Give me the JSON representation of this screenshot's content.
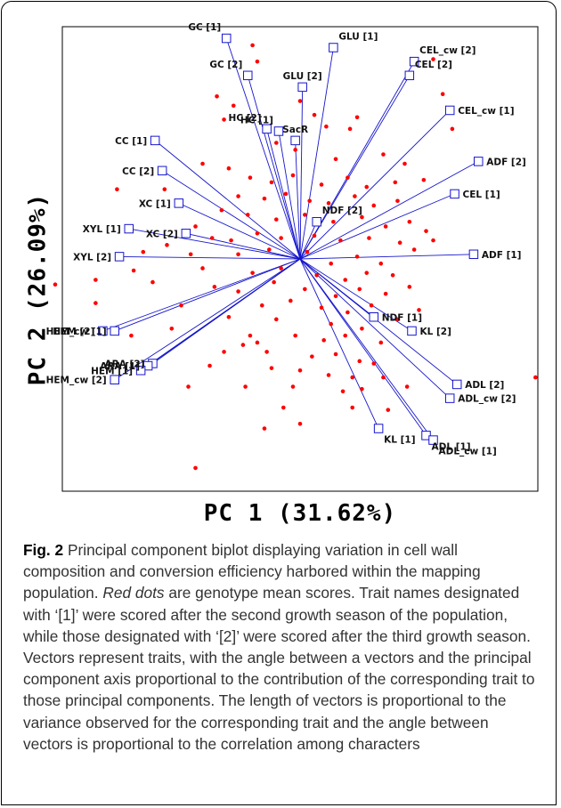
{
  "chart_data": {
    "type": "scatter",
    "subtype": "biplot",
    "xlabel": "PC 1 (31.62%)",
    "ylabel": "PC 2 (26.09%)",
    "xlim": [
      -10,
      10
    ],
    "ylim": [
      -10,
      10
    ],
    "grid": false,
    "point_color": "#ff0000",
    "vector_color": "#1515cc",
    "origin": [
      0.0,
      0.0
    ],
    "vectors": [
      {
        "label": "GC [1]",
        "x": -3.1,
        "y": 9.5
      },
      {
        "label": "GC [2]",
        "x": -2.2,
        "y": 7.9
      },
      {
        "label": "GLU [1]",
        "x": 1.4,
        "y": 9.1
      },
      {
        "label": "GLU [2]",
        "x": 0.1,
        "y": 7.4
      },
      {
        "label": "CEL_cw [2]",
        "x": 4.8,
        "y": 8.5
      },
      {
        "label": "CEL [2]",
        "x": 4.6,
        "y": 7.9
      },
      {
        "label": "CEL_cw [1]",
        "x": 6.3,
        "y": 6.4
      },
      {
        "label": "HC [2]",
        "x": -1.4,
        "y": 5.6
      },
      {
        "label": "HC [1]",
        "x": -0.9,
        "y": 5.5
      },
      {
        "label": "SacR",
        "x": -0.2,
        "y": 5.1
      },
      {
        "label": "CC [1]",
        "x": -6.1,
        "y": 5.1
      },
      {
        "label": "ADF [2]",
        "x": 7.5,
        "y": 4.2
      },
      {
        "label": "CC [2]",
        "x": -5.8,
        "y": 3.8
      },
      {
        "label": "CEL [1]",
        "x": 6.5,
        "y": 2.8
      },
      {
        "label": "XC [1]",
        "x": -5.1,
        "y": 2.4
      },
      {
        "label": "NDF [2]",
        "x": 0.7,
        "y": 1.6
      },
      {
        "label": "XYL [1]",
        "x": -7.2,
        "y": 1.3
      },
      {
        "label": "XC [2]",
        "x": -4.8,
        "y": 1.1
      },
      {
        "label": "ADF [1]",
        "x": 7.3,
        "y": 0.2
      },
      {
        "label": "XYL [2]",
        "x": -7.6,
        "y": 0.1
      },
      {
        "label": "NDF [1]",
        "x": 3.1,
        "y": -2.5
      },
      {
        "label": "KL [2]",
        "x": 4.7,
        "y": -3.1
      },
      {
        "label": "HEM [2]",
        "x": -8.3,
        "y": -3.1
      },
      {
        "label": "HEM_cw [1]",
        "x": -7.8,
        "y": -3.1
      },
      {
        "label": "ARA [2]",
        "x": -6.2,
        "y": -4.5
      },
      {
        "label": "ARA [1]",
        "x": -6.4,
        "y": -4.6
      },
      {
        "label": "HEM [1]",
        "x": -6.7,
        "y": -4.8
      },
      {
        "label": "HEM_cw [2]",
        "x": -7.8,
        "y": -5.2
      },
      {
        "label": "ADL [2]",
        "x": 6.6,
        "y": -5.4
      },
      {
        "label": "ADL_cw [2]",
        "x": 6.3,
        "y": -6.0
      },
      {
        "label": "KL [1]",
        "x": 3.3,
        "y": -7.3
      },
      {
        "label": "ADL [1]",
        "x": 5.3,
        "y": -7.6
      },
      {
        "label": "ADL_cw [1]",
        "x": 5.6,
        "y": -7.8
      }
    ],
    "points": [
      {
        "x": -2.0,
        "y": 9.2
      },
      {
        "x": -1.8,
        "y": 8.5
      },
      {
        "x": -3.5,
        "y": 7.0
      },
      {
        "x": -2.8,
        "y": 6.6
      },
      {
        "x": -3.2,
        "y": 6.0
      },
      {
        "x": 0.0,
        "y": 6.8
      },
      {
        "x": 0.6,
        "y": 6.2
      },
      {
        "x": 1.1,
        "y": 5.7
      },
      {
        "x": 2.4,
        "y": 6.1
      },
      {
        "x": 5.6,
        "y": 8.6
      },
      {
        "x": 6.0,
        "y": 7.1
      },
      {
        "x": 6.4,
        "y": 5.6
      },
      {
        "x": 2.1,
        "y": 5.6
      },
      {
        "x": -1.0,
        "y": 5.0
      },
      {
        "x": -0.2,
        "y": 4.7
      },
      {
        "x": 1.5,
        "y": 4.3
      },
      {
        "x": 3.5,
        "y": 4.5
      },
      {
        "x": 4.4,
        "y": 4.1
      },
      {
        "x": -3.0,
        "y": 3.9
      },
      {
        "x": -4.1,
        "y": 4.1
      },
      {
        "x": -2.1,
        "y": 3.5
      },
      {
        "x": -1.2,
        "y": 3.3
      },
      {
        "x": -0.3,
        "y": 3.6
      },
      {
        "x": 0.9,
        "y": 3.2
      },
      {
        "x": 2.0,
        "y": 3.5
      },
      {
        "x": 2.8,
        "y": 3.1
      },
      {
        "x": 4.0,
        "y": 3.3
      },
      {
        "x": 5.2,
        "y": 3.4
      },
      {
        "x": -7.7,
        "y": 3.0
      },
      {
        "x": -5.7,
        "y": 3.0
      },
      {
        "x": -2.6,
        "y": 2.7
      },
      {
        "x": -1.5,
        "y": 2.6
      },
      {
        "x": -0.6,
        "y": 2.8
      },
      {
        "x": 0.4,
        "y": 2.5
      },
      {
        "x": 1.2,
        "y": 2.4
      },
      {
        "x": 2.3,
        "y": 2.7
      },
      {
        "x": 3.1,
        "y": 2.3
      },
      {
        "x": 4.1,
        "y": 2.5
      },
      {
        "x": -3.3,
        "y": 2.1
      },
      {
        "x": -2.2,
        "y": 1.9
      },
      {
        "x": -1.0,
        "y": 1.7
      },
      {
        "x": 0.2,
        "y": 1.9
      },
      {
        "x": 1.4,
        "y": 1.6
      },
      {
        "x": 2.6,
        "y": 1.8
      },
      {
        "x": 3.6,
        "y": 1.4
      },
      {
        "x": 4.6,
        "y": 1.6
      },
      {
        "x": 5.3,
        "y": 1.2
      },
      {
        "x": -4.4,
        "y": 1.4
      },
      {
        "x": -3.7,
        "y": 0.9
      },
      {
        "x": -5.6,
        "y": 0.6
      },
      {
        "x": -2.9,
        "y": 0.8
      },
      {
        "x": -1.8,
        "y": 1.1
      },
      {
        "x": -0.8,
        "y": 0.9
      },
      {
        "x": 0.6,
        "y": 1.0
      },
      {
        "x": 1.7,
        "y": 0.8
      },
      {
        "x": 2.9,
        "y": 0.9
      },
      {
        "x": 4.2,
        "y": 0.7
      },
      {
        "x": 4.8,
        "y": 0.4
      },
      {
        "x": 5.6,
        "y": 0.8
      },
      {
        "x": -6.6,
        "y": 0.3
      },
      {
        "x": -4.6,
        "y": 0.2
      },
      {
        "x": -2.6,
        "y": 0.2
      },
      {
        "x": -1.3,
        "y": 0.4
      },
      {
        "x": 0.3,
        "y": 0.3
      },
      {
        "x": 1.3,
        "y": -0.2
      },
      {
        "x": 2.4,
        "y": 0.1
      },
      {
        "x": 3.4,
        "y": -0.2
      },
      {
        "x": -7.0,
        "y": -0.5
      },
      {
        "x": -4.1,
        "y": -0.4
      },
      {
        "x": -2.0,
        "y": -0.6
      },
      {
        "x": -0.8,
        "y": -0.4
      },
      {
        "x": 0.7,
        "y": -0.7
      },
      {
        "x": 1.9,
        "y": -0.9
      },
      {
        "x": 2.8,
        "y": -0.6
      },
      {
        "x": 3.9,
        "y": -0.7
      },
      {
        "x": -10.3,
        "y": -1.1
      },
      {
        "x": -8.6,
        "y": -0.9
      },
      {
        "x": -6.2,
        "y": -1.0
      },
      {
        "x": -3.6,
        "y": -1.2
      },
      {
        "x": -2.6,
        "y": -1.4
      },
      {
        "x": -1.1,
        "y": -1.0
      },
      {
        "x": 0.2,
        "y": -1.3
      },
      {
        "x": 1.5,
        "y": -1.6
      },
      {
        "x": 2.5,
        "y": -1.3
      },
      {
        "x": 3.6,
        "y": -1.5
      },
      {
        "x": 4.6,
        "y": -1.2
      },
      {
        "x": -8.6,
        "y": -1.9
      },
      {
        "x": -5.0,
        "y": -2.0
      },
      {
        "x": -1.6,
        "y": -2.0
      },
      {
        "x": -0.4,
        "y": -1.8
      },
      {
        "x": 0.9,
        "y": -2.1
      },
      {
        "x": 2.0,
        "y": -2.3
      },
      {
        "x": 3.0,
        "y": -2.0
      },
      {
        "x": 4.1,
        "y": -2.6
      },
      {
        "x": 5.0,
        "y": -2.2
      },
      {
        "x": -3.0,
        "y": -2.5
      },
      {
        "x": -1.0,
        "y": -2.6
      },
      {
        "x": 1.3,
        "y": -2.8
      },
      {
        "x": 2.6,
        "y": -3.0
      },
      {
        "x": -5.4,
        "y": -3.0
      },
      {
        "x": -2.1,
        "y": -3.3
      },
      {
        "x": -0.2,
        "y": -3.3
      },
      {
        "x": 1.0,
        "y": -3.5
      },
      {
        "x": 1.9,
        "y": -3.3
      },
      {
        "x": 3.4,
        "y": -3.6
      },
      {
        "x": -7.1,
        "y": -3.3
      },
      {
        "x": -1.8,
        "y": -3.6
      },
      {
        "x": -2.4,
        "y": -3.7
      },
      {
        "x": -1.4,
        "y": -4.0
      },
      {
        "x": -3.2,
        "y": -4.0
      },
      {
        "x": 0.5,
        "y": -4.2
      },
      {
        "x": 1.5,
        "y": -4.1
      },
      {
        "x": 2.5,
        "y": -4.4
      },
      {
        "x": 3.1,
        "y": -4.5
      },
      {
        "x": -3.8,
        "y": -4.6
      },
      {
        "x": -1.2,
        "y": -4.7
      },
      {
        "x": 0.0,
        "y": -4.8
      },
      {
        "x": 1.2,
        "y": -5.0
      },
      {
        "x": 2.2,
        "y": -5.1
      },
      {
        "x": 3.5,
        "y": -5.1
      },
      {
        "x": -4.7,
        "y": -5.5
      },
      {
        "x": -2.3,
        "y": -5.5
      },
      {
        "x": -0.3,
        "y": -5.5
      },
      {
        "x": 1.8,
        "y": -5.7
      },
      {
        "x": 2.6,
        "y": -5.6
      },
      {
        "x": 4.5,
        "y": -5.5
      },
      {
        "x": 9.9,
        "y": -5.1
      },
      {
        "x": -0.7,
        "y": -6.4
      },
      {
        "x": 2.2,
        "y": -6.4
      },
      {
        "x": 3.7,
        "y": -6.5
      },
      {
        "x": -1.5,
        "y": -7.3
      },
      {
        "x": 0.0,
        "y": -7.1
      },
      {
        "x": -4.4,
        "y": -9.0
      }
    ]
  },
  "caption": {
    "fig_label": "Fig. 2",
    "part1": " Principal component biplot displaying variation in cell wall composition and conversion efficiency harbored within the mapping population. ",
    "italic": "Red dots",
    "part2": " are genotype mean scores. Trait names designated with ‘[1]’ were scored after the second growth season of the population, while those designated with ‘[2]’ were scored after the third growth season. Vectors represent traits, with the angle between a vectors and the principal component axis proportional to the contribution of the corresponding trait to those principal components. The length of vectors is proportional to the variance observed for the corresponding trait and the angle between vectors is proportional to the correlation among characters"
  }
}
